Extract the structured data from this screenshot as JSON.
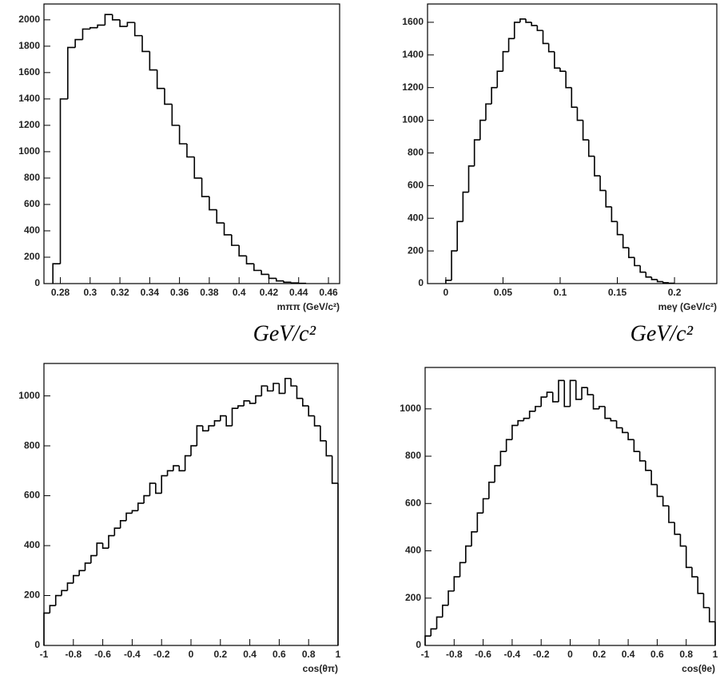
{
  "chart_data": [
    {
      "type": "histogram",
      "xlabel": "mππ (GeV/c²)",
      "annotation": "GeV/c²",
      "color": "#000000",
      "bins": [
        0.275,
        0.28,
        0.285,
        0.29,
        0.295,
        0.3,
        0.305,
        0.31,
        0.315,
        0.32,
        0.325,
        0.33,
        0.335,
        0.34,
        0.345,
        0.35,
        0.355,
        0.36,
        0.365,
        0.37,
        0.375,
        0.38,
        0.385,
        0.39,
        0.395,
        0.4,
        0.405,
        0.41,
        0.415,
        0.42,
        0.425,
        0.43,
        0.435,
        0.44,
        0.445
      ],
      "values": [
        150,
        1400,
        1790,
        1850,
        1930,
        1940,
        1960,
        2040,
        2000,
        1950,
        1980,
        1880,
        1760,
        1620,
        1480,
        1360,
        1200,
        1060,
        960,
        800,
        660,
        560,
        460,
        370,
        290,
        210,
        150,
        100,
        70,
        40,
        20,
        10,
        5,
        2
      ],
      "xlim": [
        0.269,
        0.4675
      ],
      "xticks": [
        0.28,
        0.3,
        0.32,
        0.34,
        0.36,
        0.38,
        0.4,
        0.42,
        0.44,
        0.46
      ],
      "ylim": [
        0,
        2120
      ],
      "yticks": [
        0,
        200,
        400,
        600,
        800,
        1000,
        1200,
        1400,
        1600,
        1800,
        2000
      ]
    },
    {
      "type": "histogram",
      "xlabel": "meγ (GeV/c²)",
      "annotation": "GeV/c²",
      "color": "#000000",
      "bins": [
        0,
        0.005,
        0.01,
        0.015,
        0.02,
        0.025,
        0.03,
        0.035,
        0.04,
        0.045,
        0.05,
        0.055,
        0.06,
        0.065,
        0.07,
        0.075,
        0.08,
        0.085,
        0.09,
        0.095,
        0.1,
        0.105,
        0.11,
        0.115,
        0.12,
        0.125,
        0.13,
        0.135,
        0.14,
        0.145,
        0.15,
        0.155,
        0.16,
        0.165,
        0.17,
        0.175,
        0.18,
        0.185,
        0.19,
        0.195,
        0.2
      ],
      "values": [
        20,
        200,
        380,
        560,
        720,
        880,
        1000,
        1100,
        1200,
        1300,
        1420,
        1500,
        1600,
        1620,
        1600,
        1580,
        1550,
        1470,
        1420,
        1320,
        1300,
        1200,
        1080,
        1000,
        880,
        780,
        660,
        570,
        470,
        380,
        300,
        220,
        160,
        110,
        70,
        40,
        25,
        12,
        5,
        2
      ],
      "xlim": [
        -0.016,
        0.237
      ],
      "xticks": [
        0,
        0.05,
        0.1,
        0.15,
        0.2
      ],
      "ylim": [
        0,
        1712
      ],
      "yticks": [
        0,
        200,
        400,
        600,
        800,
        1000,
        1200,
        1400,
        1600
      ]
    },
    {
      "type": "histogram",
      "xlabel": "cos(θπ)",
      "color": "#000000",
      "bins": [
        -1,
        -0.96,
        -0.92,
        -0.88,
        -0.84,
        -0.8,
        -0.76,
        -0.72,
        -0.68,
        -0.64,
        -0.6,
        -0.56,
        -0.52,
        -0.48,
        -0.44,
        -0.4,
        -0.36,
        -0.32,
        -0.28,
        -0.24,
        -0.2,
        -0.16,
        -0.12,
        -0.08,
        -0.04,
        0,
        0.04,
        0.08,
        0.12,
        0.16,
        0.2,
        0.24,
        0.28,
        0.32,
        0.36,
        0.4,
        0.44,
        0.48,
        0.52,
        0.56,
        0.6,
        0.64,
        0.68,
        0.72,
        0.76,
        0.8,
        0.84,
        0.88,
        0.92,
        0.96,
        1
      ],
      "values": [
        130,
        160,
        200,
        220,
        250,
        280,
        300,
        330,
        360,
        410,
        390,
        440,
        470,
        500,
        530,
        540,
        570,
        600,
        650,
        610,
        680,
        700,
        720,
        700,
        760,
        800,
        880,
        860,
        880,
        900,
        920,
        880,
        950,
        960,
        980,
        970,
        1000,
        1040,
        1020,
        1050,
        1010,
        1070,
        1040,
        990,
        960,
        920,
        880,
        820,
        760,
        650
      ],
      "xlim": [
        -1,
        1
      ],
      "xticks": [
        -1,
        -0.8,
        -0.6,
        -0.4,
        -0.2,
        0,
        0.2,
        0.4,
        0.6,
        0.8,
        1
      ],
      "ylim": [
        0,
        1130
      ],
      "yticks": [
        0,
        200,
        400,
        600,
        800,
        1000
      ]
    },
    {
      "type": "histogram",
      "xlabel": "cos(θe)",
      "color": "#000000",
      "bins": [
        -1,
        -0.96,
        -0.92,
        -0.88,
        -0.84,
        -0.8,
        -0.76,
        -0.72,
        -0.68,
        -0.64,
        -0.6,
        -0.56,
        -0.52,
        -0.48,
        -0.44,
        -0.4,
        -0.36,
        -0.32,
        -0.28,
        -0.24,
        -0.2,
        -0.16,
        -0.12,
        -0.08,
        -0.04,
        0,
        0.04,
        0.08,
        0.12,
        0.16,
        0.2,
        0.24,
        0.28,
        0.32,
        0.36,
        0.4,
        0.44,
        0.48,
        0.52,
        0.56,
        0.6,
        0.64,
        0.68,
        0.72,
        0.76,
        0.8,
        0.84,
        0.88,
        0.92,
        0.96,
        1
      ],
      "values": [
        40,
        70,
        120,
        170,
        230,
        290,
        350,
        420,
        480,
        560,
        620,
        690,
        760,
        820,
        870,
        930,
        950,
        960,
        990,
        1010,
        1050,
        1070,
        1030,
        1120,
        1010,
        1120,
        1040,
        1090,
        1060,
        1000,
        1010,
        960,
        950,
        920,
        900,
        870,
        820,
        780,
        740,
        680,
        630,
        590,
        520,
        470,
        420,
        330,
        290,
        220,
        160,
        100
      ],
      "xlim": [
        -1,
        1
      ],
      "xticks": [
        -1,
        -0.8,
        -0.6,
        -0.4,
        -0.2,
        0,
        0.2,
        0.4,
        0.6,
        0.8,
        1
      ],
      "ylim": [
        0,
        1175
      ],
      "yticks": [
        0,
        200,
        400,
        600,
        800,
        1000
      ]
    }
  ]
}
